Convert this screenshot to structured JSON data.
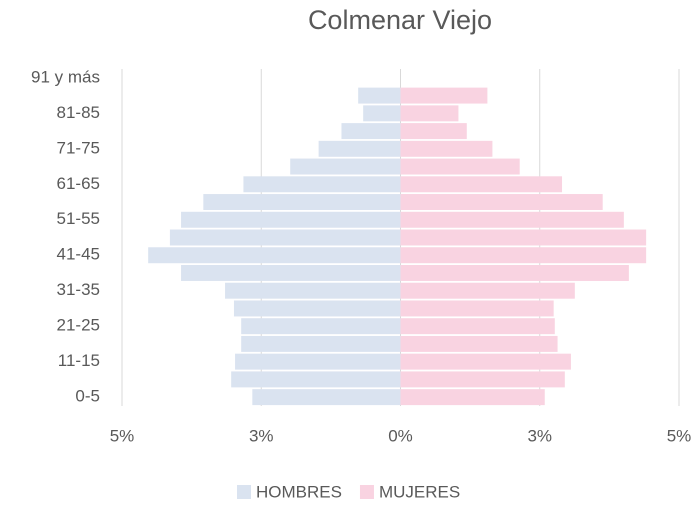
{
  "chart_data": {
    "type": "bar",
    "orientation": "horizontal",
    "title": "Colmenar Viejo",
    "categories": [
      "0-5",
      null,
      "11-15",
      null,
      "21-25",
      null,
      "31-35",
      null,
      "41-45",
      null,
      "51-55",
      null,
      "61-65",
      null,
      "71-75",
      null,
      "81-85",
      null,
      "91 y más"
    ],
    "series": [
      {
        "name": "HOMBRES",
        "color": "#dae3f0",
        "values": [
          -2.66,
          -3.04,
          -2.97,
          -2.86,
          -2.86,
          -2.99,
          -3.15,
          -3.94,
          -4.53,
          -4.14,
          -3.94,
          -3.54,
          -2.82,
          -1.98,
          -1.47,
          -1.06,
          -0.67,
          -0.76,
          0
        ]
      },
      {
        "name": "MUJERES",
        "color": "#f9d3e1",
        "values": [
          2.59,
          2.95,
          3.06,
          2.82,
          2.77,
          2.75,
          3.13,
          4.1,
          4.41,
          4.41,
          4.01,
          3.63,
          2.9,
          2.14,
          1.65,
          1.19,
          1.04,
          1.56,
          0
        ]
      }
    ],
    "xlim": [
      -5,
      5
    ],
    "xticks": [
      {
        "value": -5,
        "label": "5%"
      },
      {
        "value": -2.5,
        "label": "3%"
      },
      {
        "value": 0,
        "label": "0%"
      },
      {
        "value": 2.5,
        "label": "3%"
      },
      {
        "value": 5,
        "label": "5%"
      }
    ],
    "grid": true,
    "legend": "bottom"
  }
}
